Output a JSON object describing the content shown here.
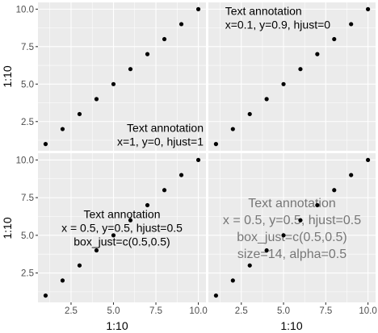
{
  "chart_data": {
    "type": "scatter",
    "layout": "2x2 facet grid",
    "x": [
      1,
      2,
      3,
      4,
      5,
      6,
      7,
      8,
      9,
      10
    ],
    "y": [
      1,
      2,
      3,
      4,
      5,
      6,
      7,
      8,
      9,
      10
    ],
    "xlabel": "1:10",
    "ylabel": "1:10",
    "xticks": [
      2.5,
      5.0,
      7.5,
      10.0
    ],
    "xtick_labels": [
      "2.5",
      "5.0",
      "7.5",
      "10.0"
    ],
    "yticks": [
      2.5,
      5.0,
      7.5,
      10.0
    ],
    "ytick_labels": [
      "2.5",
      "5.0",
      "7.5",
      "10.0"
    ],
    "xlim": [
      0.55,
      10.45
    ],
    "ylim": [
      0.55,
      10.45
    ],
    "grid": true,
    "point_color": "#000000",
    "panel_background": "#ebebeb",
    "panels": [
      {
        "id": "top-left",
        "annotation": {
          "lines": [
            "Text annotation",
            "x=1, y=0, hjust=1"
          ],
          "npc_x": 1,
          "npc_y": 0,
          "hjust": 1,
          "vjust": 0,
          "align": "right",
          "color": "#000000",
          "opacity": 1,
          "size": "normal"
        }
      },
      {
        "id": "top-right",
        "annotation": {
          "lines": [
            "Text annotation",
            "x=0.1, y=0.9, hjust=0"
          ],
          "npc_x": 0.1,
          "npc_y": 0.9,
          "hjust": 0,
          "vjust": 0.5,
          "align": "left",
          "color": "#000000",
          "opacity": 1,
          "size": "normal"
        }
      },
      {
        "id": "bottom-left",
        "annotation": {
          "lines": [
            "Text annotation",
            "x = 0.5, y=0.5, hjust=0.5",
            "box_just=c(0.5,0.5)"
          ],
          "npc_x": 0.5,
          "npc_y": 0.5,
          "hjust": 0.5,
          "vjust": 0.5,
          "align": "center",
          "color": "#000000",
          "opacity": 1,
          "size": "normal"
        }
      },
      {
        "id": "bottom-right",
        "annotation": {
          "lines": [
            "Text annotation",
            "x = 0.5, y=0.5, hjust=0.5",
            "box_just=c(0.5,0.5)",
            "size=14, alpha=0.5"
          ],
          "npc_x": 0.5,
          "npc_y": 0.5,
          "hjust": 0.5,
          "vjust": 0.5,
          "align": "center",
          "color": "#000000",
          "opacity": 0.5,
          "size": "large"
        }
      }
    ]
  }
}
